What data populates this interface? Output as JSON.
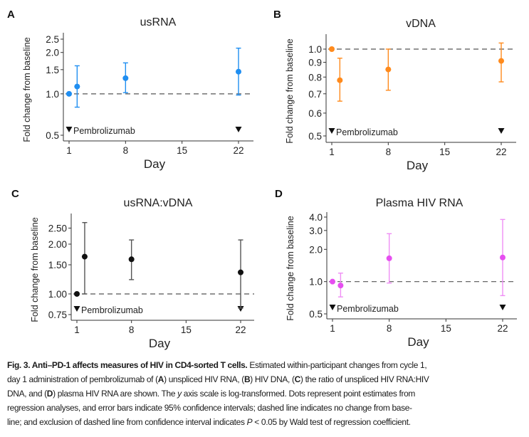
{
  "figure": {
    "caption_lines": [
      [
        {
          "b": "Fig. 3. Anti–PD-1 affects measures of HIV in CD4-sorted T cells."
        },
        {
          "t": " Estimated within-participant changes from cycle 1,"
        }
      ],
      [
        {
          "t": "day 1 administration of pembrolizumab of ("
        },
        {
          "b": "A"
        },
        {
          "t": ") unspliced HIV RNA, ("
        },
        {
          "b": "B"
        },
        {
          "t": ") HIV DNA, ("
        },
        {
          "b": "C"
        },
        {
          "t": ") the ratio of unspliced HIV RNA:HIV"
        }
      ],
      [
        {
          "t": "DNA, and ("
        },
        {
          "b": "D"
        },
        {
          "t": ") plasma HIV RNA are shown. The "
        },
        {
          "i": "y"
        },
        {
          "t": " axis scale is log-transformed. Dots represent point estimates from"
        }
      ],
      [
        {
          "t": "regression analyses, and error bars indicate 95% confidence intervals; dashed line indicates no change from base-"
        }
      ],
      [
        {
          "t": "line; and exclusion of dashed line from confidence interval indicates "
        },
        {
          "i": "P"
        },
        {
          "t": " < 0.05 by Wald test of regression coefficient."
        }
      ]
    ]
  },
  "chart_data": [
    {
      "panel": "A",
      "type": "scatter",
      "title": "usRNA",
      "xlabel": "Day",
      "ylabel": "Fold change from baseline",
      "yscale": "log",
      "ylim": [
        0.48,
        2.75
      ],
      "xlim": [
        0,
        24
      ],
      "xticks": [
        1,
        8,
        15,
        22
      ],
      "yticks": [
        0.5,
        1.0,
        1.5,
        2.0,
        2.5
      ],
      "ytick_labels": [
        "0.5",
        "1.0",
        "1.5",
        "2.0",
        "2.5"
      ],
      "color": "#1f8ef1",
      "reference_line": 1.0,
      "annotation": "Pembrolizumab",
      "dose_days": [
        1,
        22
      ],
      "points": [
        {
          "x": 1,
          "y": 1.0,
          "lo": null,
          "hi": null
        },
        {
          "x": 2,
          "y": 1.13,
          "lo": 0.8,
          "hi": 1.6
        },
        {
          "x": 8,
          "y": 1.3,
          "lo": 1.02,
          "hi": 1.68
        },
        {
          "x": 22,
          "y": 1.45,
          "lo": 0.98,
          "hi": 2.15
        }
      ]
    },
    {
      "panel": "B",
      "type": "scatter",
      "title": "vDNA",
      "xlabel": "Day",
      "ylabel": "Fold change from baseline",
      "yscale": "log",
      "ylim": [
        0.48,
        1.13
      ],
      "xlim": [
        0,
        24
      ],
      "xticks": [
        1,
        8,
        15,
        22
      ],
      "yticks": [
        0.5,
        0.6,
        0.7,
        0.8,
        0.9,
        1.0
      ],
      "ytick_labels": [
        "0.5",
        "0.6",
        "0.7",
        "0.8",
        "0.9",
        "1.0"
      ],
      "color": "#ff8a1c",
      "reference_line": 1.0,
      "annotation": "Pembrolizumab",
      "dose_days": [
        1,
        22
      ],
      "points": [
        {
          "x": 1,
          "y": 1.0,
          "lo": null,
          "hi": null
        },
        {
          "x": 2,
          "y": 0.78,
          "lo": 0.66,
          "hi": 0.93
        },
        {
          "x": 8,
          "y": 0.85,
          "lo": 0.72,
          "hi": 1.0
        },
        {
          "x": 22,
          "y": 0.91,
          "lo": 0.77,
          "hi": 1.05
        }
      ]
    },
    {
      "panel": "C",
      "type": "scatter",
      "title": "usRNA:vDNA",
      "xlabel": "Day",
      "ylabel": "Fold change from baseline",
      "yscale": "log",
      "ylim": [
        0.72,
        3.1
      ],
      "xlim": [
        0,
        24
      ],
      "xticks": [
        1,
        8,
        15,
        22
      ],
      "yticks": [
        0.75,
        1.0,
        1.5,
        2.0,
        2.5
      ],
      "ytick_labels": [
        "0.75",
        "1.00",
        "1.50",
        "2.00",
        "2.50"
      ],
      "color": "#111111",
      "errcolor": "#555555",
      "reference_line": 1.0,
      "annotation": "Pembrolizumab",
      "dose_days": [
        1,
        22
      ],
      "points": [
        {
          "x": 1,
          "y": 1.0,
          "lo": null,
          "hi": null
        },
        {
          "x": 2,
          "y": 1.68,
          "lo": 1.0,
          "hi": 2.7
        },
        {
          "x": 8,
          "y": 1.62,
          "lo": 1.22,
          "hi": 2.12
        },
        {
          "x": 22,
          "y": 1.35,
          "lo": 0.82,
          "hi": 2.12
        }
      ]
    },
    {
      "panel": "D",
      "type": "scatter",
      "title": "Plasma HIV RNA",
      "xlabel": "Day",
      "ylabel": "Fold change from baseline",
      "yscale": "log",
      "ylim": [
        0.47,
        4.5
      ],
      "xlim": [
        0,
        24
      ],
      "xticks": [
        1,
        8,
        15,
        22
      ],
      "yticks": [
        0.5,
        1.0,
        2.0,
        3.0,
        4.0
      ],
      "ytick_labels": [
        "0.5",
        "1.0",
        "2.0",
        "3.0",
        "4.0"
      ],
      "color": "#e64ff0",
      "errcolor": "#ef8ef5",
      "reference_line": 1.0,
      "annotation": "Pembrolizumab",
      "dose_days": [
        1,
        22
      ],
      "points": [
        {
          "x": 1,
          "y": 1.0,
          "lo": null,
          "hi": null
        },
        {
          "x": 2,
          "y": 0.92,
          "lo": 0.72,
          "hi": 1.2
        },
        {
          "x": 8,
          "y": 1.65,
          "lo": 0.97,
          "hi": 2.8
        },
        {
          "x": 22,
          "y": 1.68,
          "lo": 0.74,
          "hi": 3.8
        }
      ]
    }
  ]
}
